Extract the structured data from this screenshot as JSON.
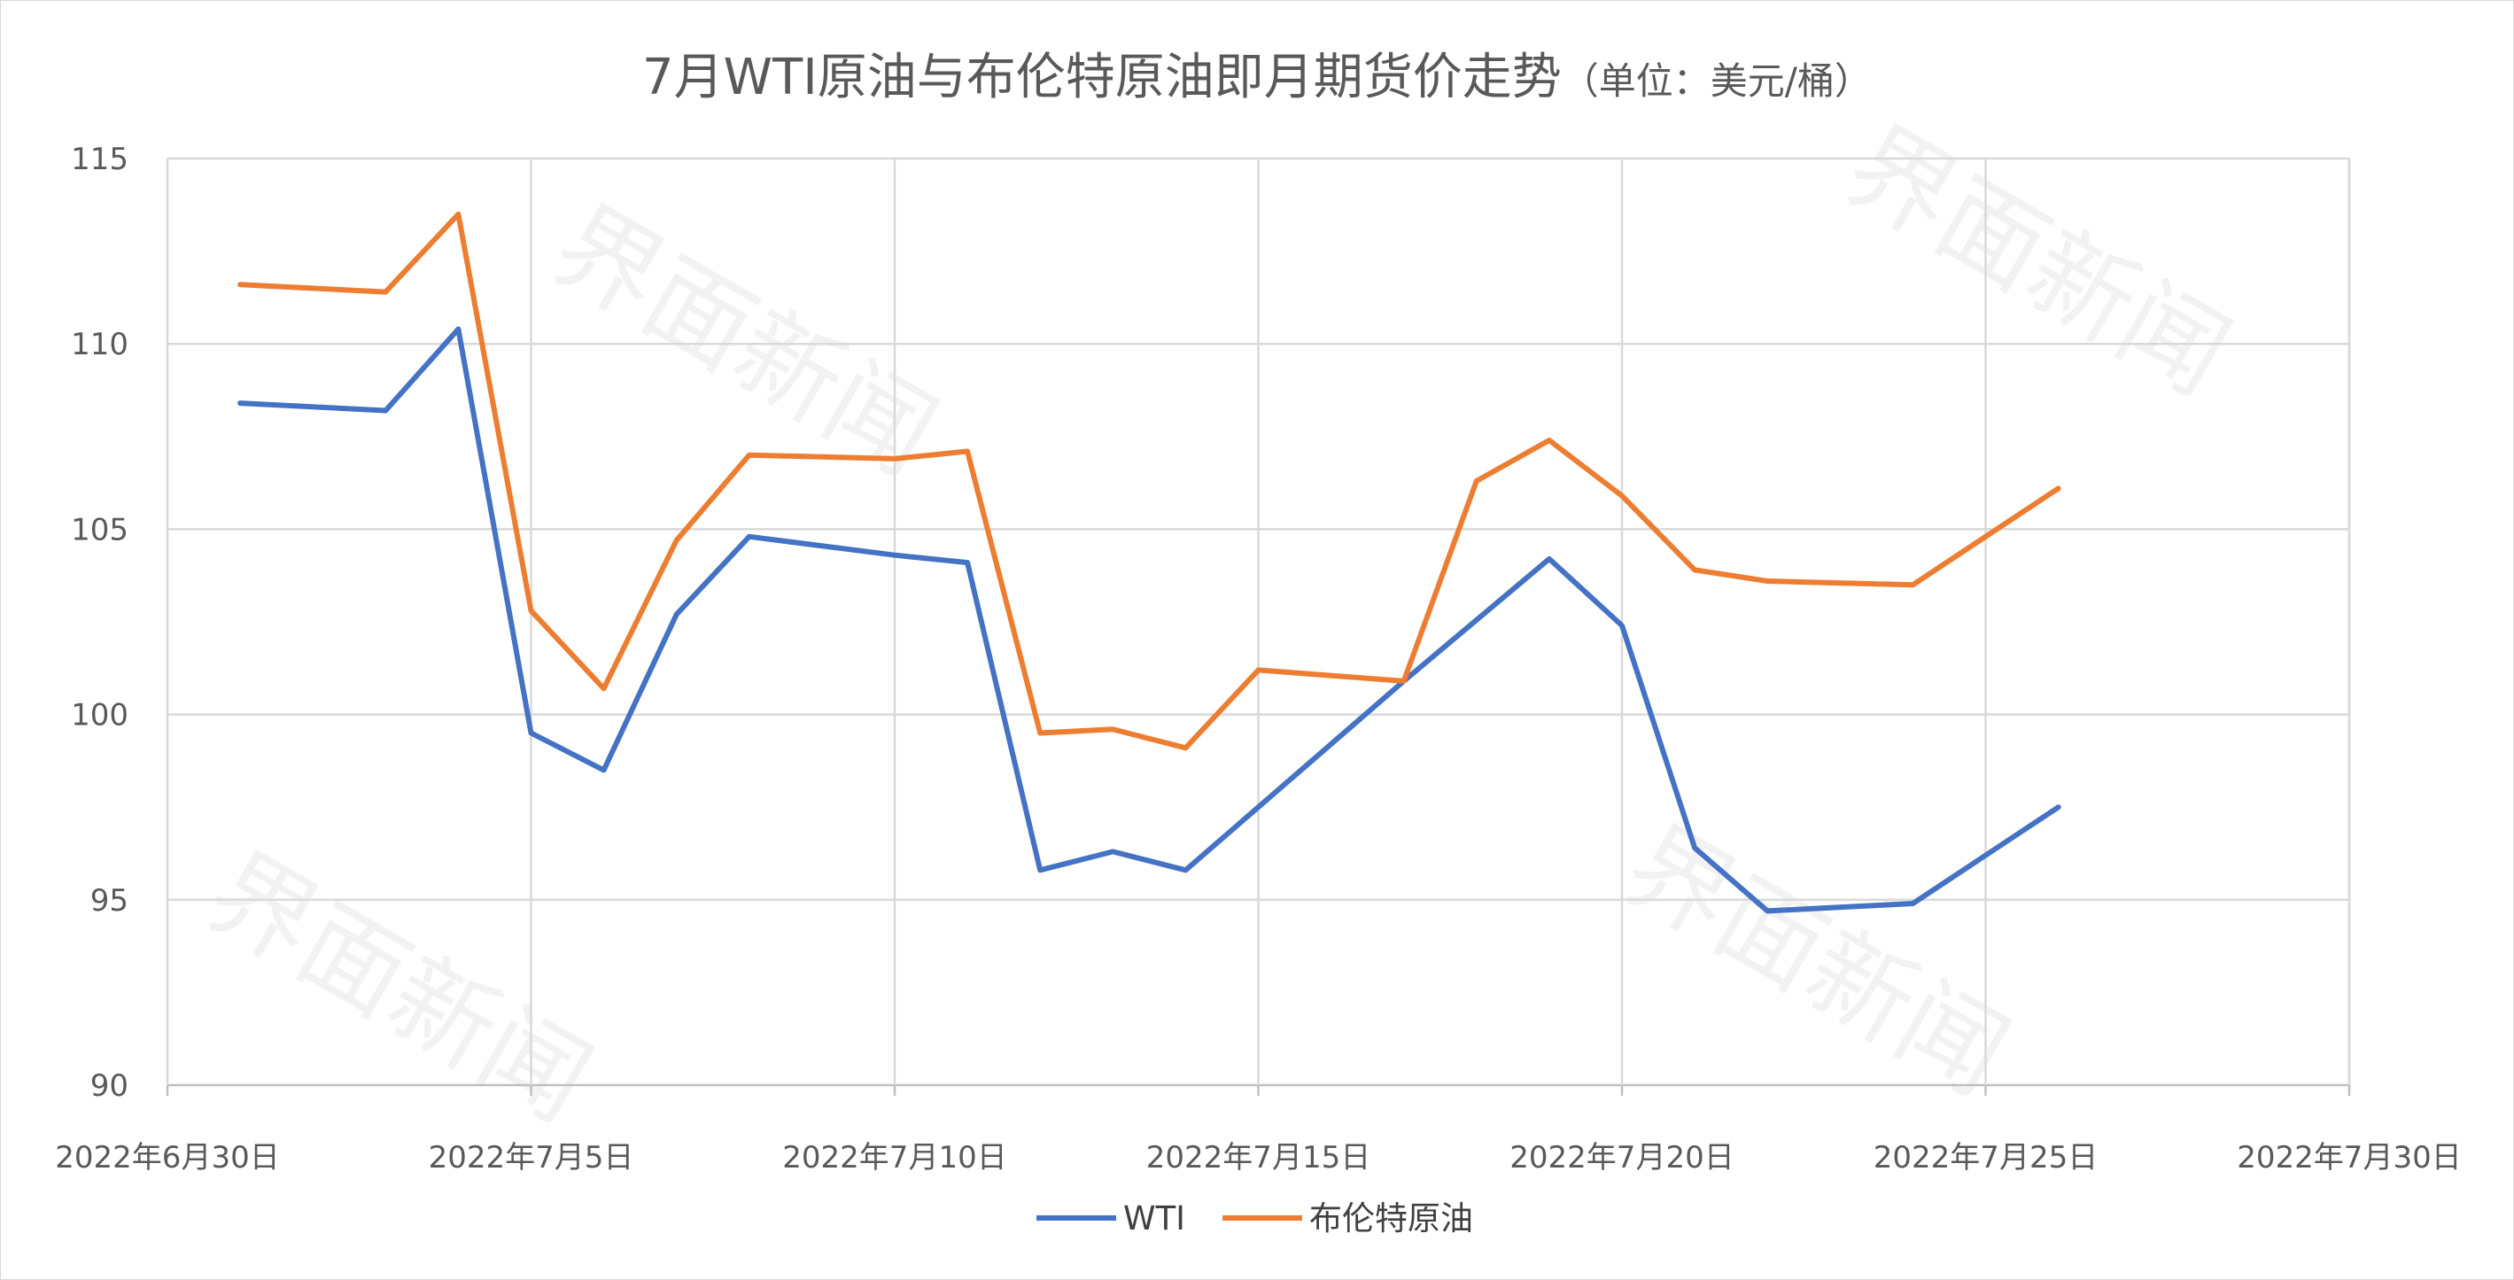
{
  "chart_data": {
    "type": "line",
    "title": "7月WTI原油与布伦特原油即月期货价走势",
    "subtitle": "（单位：美元/桶）",
    "xlabel": "",
    "ylabel": "",
    "ylim": [
      90,
      115
    ],
    "yticks": [
      90,
      95,
      100,
      105,
      110,
      115
    ],
    "xlim": [
      "2022-06-30",
      "2022-07-30"
    ],
    "xticks": [
      {
        "date": "2022-06-30",
        "label": "2022年6月30日"
      },
      {
        "date": "2022-07-05",
        "label": "2022年7月5日"
      },
      {
        "date": "2022-07-10",
        "label": "2022年7月10日"
      },
      {
        "date": "2022-07-15",
        "label": "2022年7月15日"
      },
      {
        "date": "2022-07-20",
        "label": "2022年7月20日"
      },
      {
        "date": "2022-07-25",
        "label": "2022年7月25日"
      },
      {
        "date": "2022-07-30",
        "label": "2022年7月30日"
      }
    ],
    "grid": true,
    "legend_position": "bottom",
    "series": [
      {
        "name": "WTI",
        "color": "#4472C4",
        "points": [
          [
            "2022-07-01",
            108.4
          ],
          [
            "2022-07-03",
            108.2
          ],
          [
            "2022-07-04",
            110.4
          ],
          [
            "2022-07-05",
            99.5
          ],
          [
            "2022-07-06",
            98.5
          ],
          [
            "2022-07-07",
            102.7
          ],
          [
            "2022-07-08",
            104.8
          ],
          [
            "2022-07-10",
            104.3
          ],
          [
            "2022-07-11",
            104.1
          ],
          [
            "2022-07-12",
            95.8
          ],
          [
            "2022-07-13",
            96.3
          ],
          [
            "2022-07-14",
            95.8
          ],
          [
            "2022-07-17",
            100.9
          ],
          [
            "2022-07-19",
            104.2
          ],
          [
            "2022-07-20",
            102.4
          ],
          [
            "2022-07-21",
            96.4
          ],
          [
            "2022-07-22",
            94.7
          ],
          [
            "2022-07-24",
            94.9
          ],
          [
            "2022-07-26",
            97.5
          ]
        ]
      },
      {
        "name": "布伦特原油",
        "color": "#ED7D31",
        "points": [
          [
            "2022-07-01",
            111.6
          ],
          [
            "2022-07-03",
            111.4
          ],
          [
            "2022-07-04",
            113.5
          ],
          [
            "2022-07-05",
            102.8
          ],
          [
            "2022-07-06",
            100.7
          ],
          [
            "2022-07-07",
            104.7
          ],
          [
            "2022-07-08",
            107.0
          ],
          [
            "2022-07-10",
            106.9
          ],
          [
            "2022-07-11",
            107.1
          ],
          [
            "2022-07-12",
            99.5
          ],
          [
            "2022-07-13",
            99.6
          ],
          [
            "2022-07-14",
            99.1
          ],
          [
            "2022-07-15",
            101.2
          ],
          [
            "2022-07-17",
            100.9
          ],
          [
            "2022-07-18",
            106.3
          ],
          [
            "2022-07-19",
            107.4
          ],
          [
            "2022-07-20",
            105.9
          ],
          [
            "2022-07-21",
            103.9
          ],
          [
            "2022-07-22",
            103.6
          ],
          [
            "2022-07-24",
            103.5
          ],
          [
            "2022-07-26",
            106.1
          ]
        ]
      }
    ]
  },
  "watermark": "界面新闻"
}
